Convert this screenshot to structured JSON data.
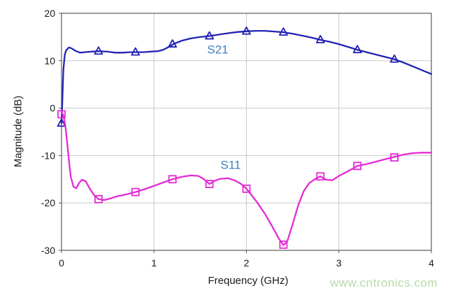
{
  "chart_data": {
    "type": "line",
    "title": "",
    "xlabel": "Frequency (GHz)",
    "ylabel": "Magnitude (dB)",
    "xlim": [
      0,
      4
    ],
    "ylim": [
      -30,
      20
    ],
    "xticks": [
      0,
      1,
      2,
      3,
      4
    ],
    "yticks": [
      20,
      10,
      0,
      -10,
      -20,
      -30
    ],
    "grid": true,
    "colors": {
      "grid": "#c9c9c9",
      "box": "#5a5a5a",
      "tick_label": "#1a1a1a",
      "s21_curve": "#2323b4",
      "s11_curve": "#e52ad5",
      "series_label": "#4080c0"
    },
    "series": [
      {
        "name": "S21",
        "marker": "triangle-up",
        "color": "#2323b4",
        "points": [
          [
            0,
            -3.2
          ],
          [
            0.01,
            2
          ],
          [
            0.02,
            8
          ],
          [
            0.035,
            11.2
          ],
          [
            0.05,
            12.2
          ],
          [
            0.08,
            12.8
          ],
          [
            0.11,
            12.6
          ],
          [
            0.15,
            12.1
          ],
          [
            0.2,
            11.7
          ],
          [
            0.25,
            11.8
          ],
          [
            0.32,
            11.9
          ],
          [
            0.4,
            12.0
          ],
          [
            0.5,
            11.9
          ],
          [
            0.58,
            11.7
          ],
          [
            0.66,
            11.7
          ],
          [
            0.74,
            11.8
          ],
          [
            0.8,
            11.8
          ],
          [
            0.88,
            11.8
          ],
          [
            0.96,
            11.9
          ],
          [
            1.04,
            12.0
          ],
          [
            1.1,
            12.3
          ],
          [
            1.16,
            12.9
          ],
          [
            1.22,
            13.6
          ],
          [
            1.3,
            14.2
          ],
          [
            1.4,
            14.7
          ],
          [
            1.5,
            15.0
          ],
          [
            1.6,
            15.2
          ],
          [
            1.7,
            15.5
          ],
          [
            1.8,
            15.8
          ],
          [
            1.9,
            16.05
          ],
          [
            2.0,
            16.2
          ],
          [
            2.1,
            16.3
          ],
          [
            2.2,
            16.3
          ],
          [
            2.3,
            16.15
          ],
          [
            2.4,
            16.0
          ],
          [
            2.5,
            15.7
          ],
          [
            2.6,
            15.3
          ],
          [
            2.7,
            14.9
          ],
          [
            2.8,
            14.4
          ],
          [
            2.9,
            14.0
          ],
          [
            3.0,
            13.5
          ],
          [
            3.1,
            12.9
          ],
          [
            3.2,
            12.3
          ],
          [
            3.3,
            11.8
          ],
          [
            3.4,
            11.3
          ],
          [
            3.5,
            10.8
          ],
          [
            3.6,
            10.3
          ],
          [
            3.7,
            9.6
          ],
          [
            3.8,
            8.8
          ],
          [
            3.9,
            8.0
          ],
          [
            4.0,
            7.2
          ]
        ],
        "markers": [
          [
            0,
            -3.2
          ],
          [
            0.4,
            12.0
          ],
          [
            0.8,
            11.8
          ],
          [
            1.2,
            13.5
          ],
          [
            1.6,
            15.2
          ],
          [
            2.0,
            16.2
          ],
          [
            2.4,
            16.0
          ],
          [
            2.8,
            14.4
          ],
          [
            3.2,
            12.3
          ],
          [
            3.6,
            10.3
          ]
        ]
      },
      {
        "name": "S11",
        "marker": "square",
        "color": "#e52ad5",
        "points": [
          [
            0,
            -0.8
          ],
          [
            0.02,
            -1.5
          ],
          [
            0.04,
            -3.5
          ],
          [
            0.06,
            -7
          ],
          [
            0.08,
            -11
          ],
          [
            0.1,
            -14.5
          ],
          [
            0.13,
            -16.6
          ],
          [
            0.16,
            -16.9
          ],
          [
            0.19,
            -15.8
          ],
          [
            0.22,
            -15.1
          ],
          [
            0.26,
            -15.4
          ],
          [
            0.3,
            -16.8
          ],
          [
            0.35,
            -18.3
          ],
          [
            0.4,
            -19.2
          ],
          [
            0.46,
            -19.4
          ],
          [
            0.52,
            -19.1
          ],
          [
            0.6,
            -18.6
          ],
          [
            0.7,
            -18.2
          ],
          [
            0.8,
            -17.7
          ],
          [
            0.9,
            -17.1
          ],
          [
            1.0,
            -16.4
          ],
          [
            1.1,
            -15.7
          ],
          [
            1.2,
            -15.0
          ],
          [
            1.3,
            -14.5
          ],
          [
            1.4,
            -14.2
          ],
          [
            1.48,
            -14.3
          ],
          [
            1.54,
            -15.0
          ],
          [
            1.6,
            -16.0
          ],
          [
            1.66,
            -15.3
          ],
          [
            1.72,
            -14.9
          ],
          [
            1.8,
            -14.8
          ],
          [
            1.88,
            -15.3
          ],
          [
            1.95,
            -16.1
          ],
          [
            2.0,
            -17.0
          ],
          [
            2.05,
            -18.2
          ],
          [
            2.12,
            -20.0
          ],
          [
            2.2,
            -22.3
          ],
          [
            2.28,
            -25.0
          ],
          [
            2.35,
            -27.5
          ],
          [
            2.4,
            -28.9
          ],
          [
            2.44,
            -28.2
          ],
          [
            2.5,
            -24.5
          ],
          [
            2.56,
            -20.5
          ],
          [
            2.62,
            -17.5
          ],
          [
            2.68,
            -15.8
          ],
          [
            2.74,
            -15.0
          ],
          [
            2.8,
            -14.4
          ],
          [
            2.86,
            -15.1
          ],
          [
            2.93,
            -15.2
          ],
          [
            3.0,
            -14.3
          ],
          [
            3.1,
            -13.3
          ],
          [
            3.2,
            -12.2
          ],
          [
            3.3,
            -11.8
          ],
          [
            3.4,
            -11.3
          ],
          [
            3.5,
            -10.8
          ],
          [
            3.6,
            -10.3
          ],
          [
            3.7,
            -9.8
          ],
          [
            3.8,
            -9.5
          ],
          [
            3.9,
            -9.4
          ],
          [
            4.0,
            -9.4
          ]
        ],
        "markers": [
          [
            0,
            -1.3
          ],
          [
            0.4,
            -19.2
          ],
          [
            0.8,
            -17.7
          ],
          [
            1.2,
            -15.0
          ],
          [
            1.6,
            -16.0
          ],
          [
            2.0,
            -17.0
          ],
          [
            2.4,
            -28.8
          ],
          [
            2.8,
            -14.4
          ],
          [
            3.2,
            -12.2
          ],
          [
            3.6,
            -10.4
          ]
        ]
      }
    ],
    "annotations": [
      {
        "text": "S21",
        "x": 1.69,
        "y": 12.4,
        "color": "#4080c0"
      },
      {
        "text": "S11",
        "x": 1.83,
        "y": -11.9,
        "color": "#4080c0"
      }
    ],
    "legend_position": "inline-annotations"
  },
  "watermark": {
    "text": "www.cntronics.com",
    "color": "#b5daa8"
  }
}
